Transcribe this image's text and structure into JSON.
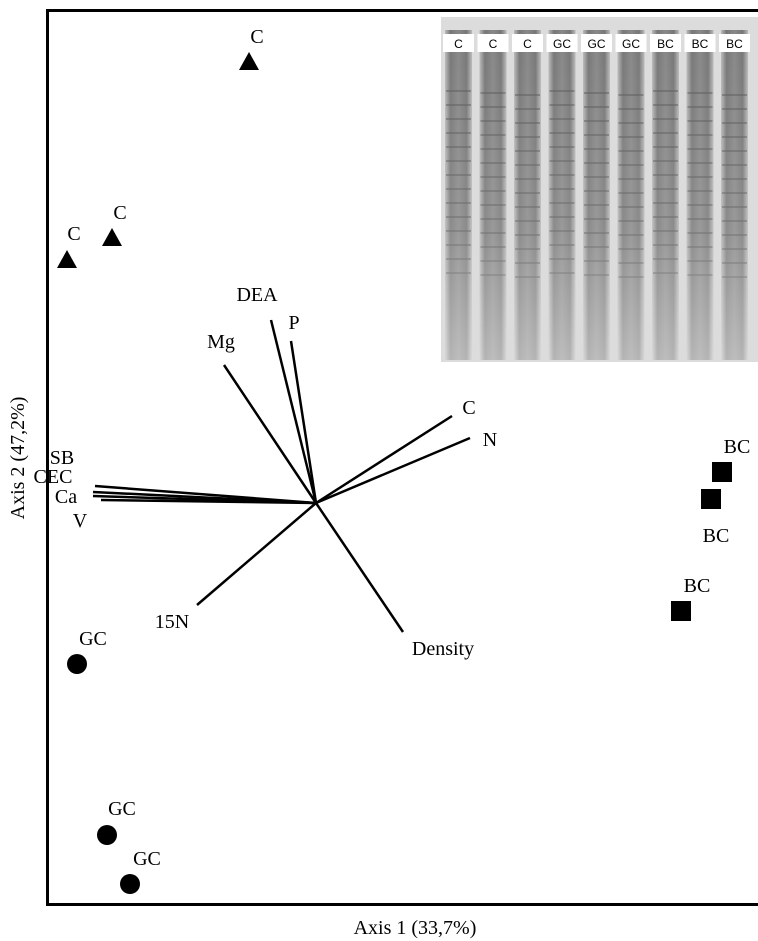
{
  "axes": {
    "x_title": "Axis 1 (33,7%)",
    "y_title": "Axis 2 (47,2%)"
  },
  "points": [
    {
      "label": "C"
    },
    {
      "label": "C"
    },
    {
      "label": "C"
    },
    {
      "label": "BC"
    },
    {
      "label": "BC"
    },
    {
      "label": "BC"
    },
    {
      "label": "GC"
    },
    {
      "label": "GC"
    },
    {
      "label": "GC"
    }
  ],
  "vectors": [
    {
      "label": "Mg"
    },
    {
      "label": "DEA"
    },
    {
      "label": "P"
    },
    {
      "label": "C"
    },
    {
      "label": "N"
    },
    {
      "label": "SB"
    },
    {
      "label": "CEC"
    },
    {
      "label": "Ca"
    },
    {
      "label": "V"
    },
    {
      "label": "15N"
    },
    {
      "label": "Density"
    }
  ],
  "gel": {
    "lanes": [
      "C",
      "C",
      "C",
      "GC",
      "GC",
      "GC",
      "BC",
      "BC",
      "BC"
    ]
  }
}
